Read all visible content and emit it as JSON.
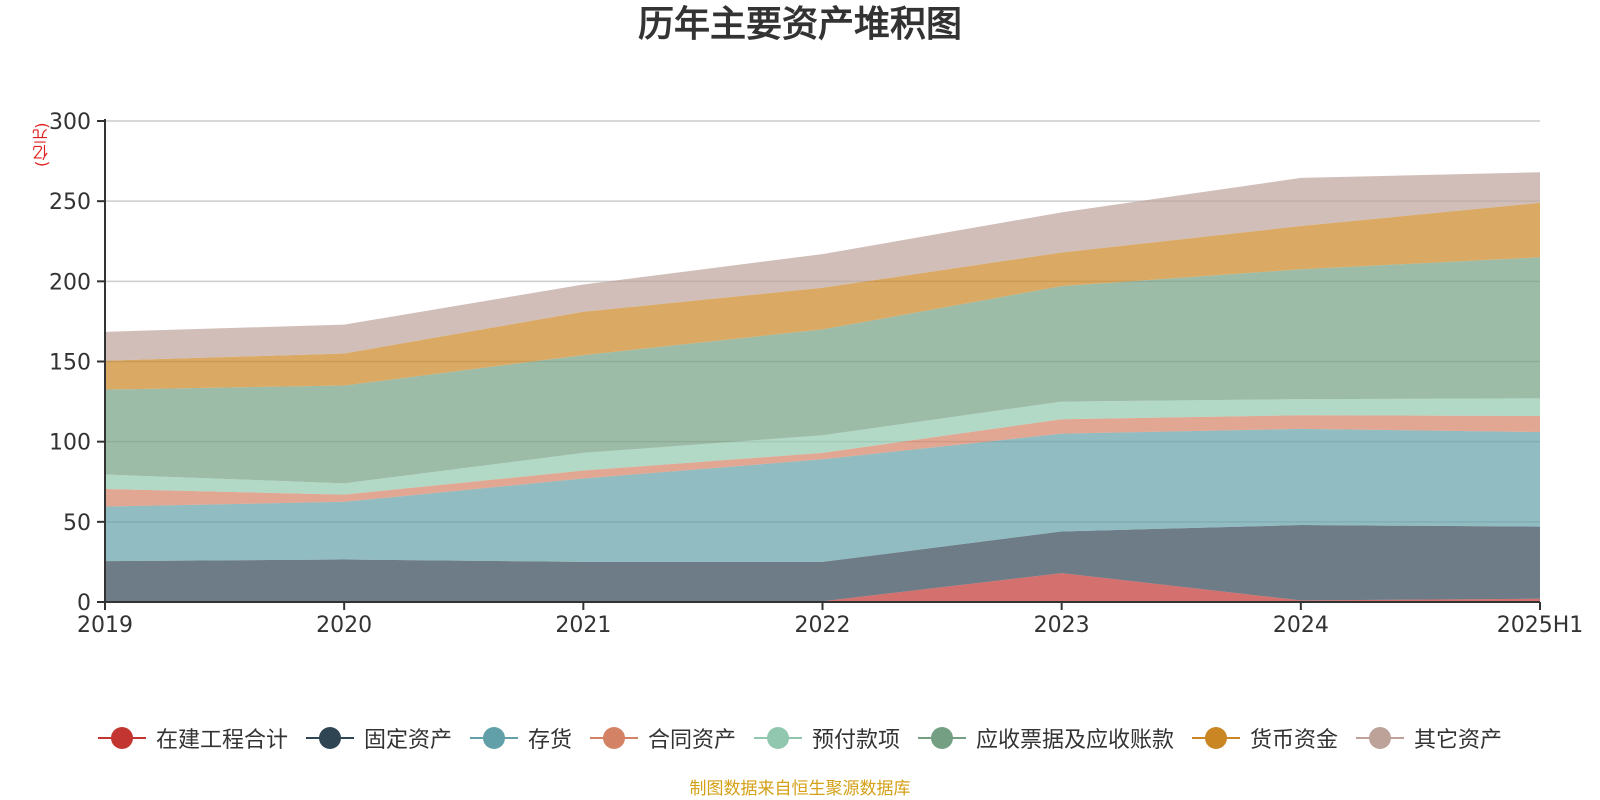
{
  "chart_data": {
    "type": "area",
    "title": "历年主要资产堆积图",
    "unit_label": "(亿元)",
    "xlabel": "",
    "ylabel": "",
    "categories": [
      "2019",
      "2020",
      "2021",
      "2022",
      "2023",
      "2024",
      "2025H1"
    ],
    "ylim": [
      0,
      300
    ],
    "yticks": [
      0,
      50,
      100,
      150,
      200,
      250,
      300
    ],
    "stacked": true,
    "grid": true,
    "legend_position": "bottom",
    "series": [
      {
        "name": "在建工程合计",
        "color": "#c23531",
        "values": [
          0.5,
          0.5,
          0.5,
          0.5,
          18,
          1,
          2
        ]
      },
      {
        "name": "固定资产",
        "color": "#2f4554",
        "values": [
          25,
          26,
          24.5,
          24.5,
          26,
          47,
          45
        ]
      },
      {
        "name": "存货",
        "color": "#61a0a8",
        "values": [
          34,
          36,
          52,
          64,
          61,
          60,
          59
        ]
      },
      {
        "name": "合同资产",
        "color": "#d48265",
        "values": [
          11,
          4.5,
          5,
          4,
          9,
          8.5,
          10
        ]
      },
      {
        "name": "预付款项",
        "color": "#91c7ae",
        "values": [
          9,
          7,
          11,
          11,
          11,
          10,
          11
        ]
      },
      {
        "name": "应收票据及应收账款",
        "color": "#749f83",
        "values": [
          53,
          61,
          61,
          66,
          72,
          81,
          88
        ]
      },
      {
        "name": "货币资金",
        "color": "#ca8622",
        "values": [
          18,
          20,
          27,
          26,
          21,
          27,
          34
        ]
      },
      {
        "name": "其它资产",
        "color": "#bda29a",
        "values": [
          18,
          18,
          17,
          21,
          25,
          30,
          19
        ]
      }
    ]
  },
  "footer": {
    "source": "制图数据来自恒生聚源数据库"
  }
}
